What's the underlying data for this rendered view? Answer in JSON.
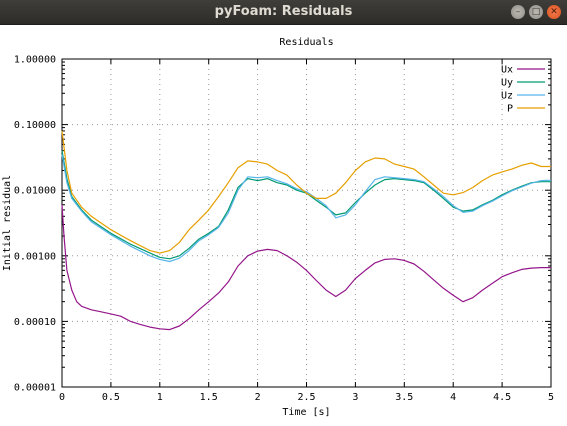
{
  "window": {
    "title": "pyFoam: Residuals",
    "controls": {
      "minimize": "–",
      "maximize": "□",
      "close": "✕"
    }
  },
  "chart_data": {
    "type": "line",
    "title": "Residuals",
    "xlabel": "Time [s]",
    "ylabel": "Initial residual",
    "xlim": [
      0,
      5
    ],
    "ylim": [
      1e-05,
      1
    ],
    "yscale": "log",
    "grid": true,
    "legend_position": "top-right",
    "xticks": [
      0,
      0.5,
      1,
      1.5,
      2,
      2.5,
      3,
      3.5,
      4,
      4.5,
      5
    ],
    "xtick_labels": [
      "0",
      "0.5",
      "1",
      "1.5",
      "2",
      "2.5",
      "3",
      "3.5",
      "4",
      "4.5",
      "5"
    ],
    "yticks": [
      1e-05,
      0.0001,
      0.001,
      0.01,
      0.1,
      1
    ],
    "ytick_labels": [
      "0.00001",
      "0.00010",
      "0.00100",
      "0.01000",
      "0.10000",
      "1.00000"
    ],
    "series": [
      {
        "name": "Ux",
        "color": "#94168a",
        "x": [
          0,
          0.02,
          0.05,
          0.1,
          0.15,
          0.2,
          0.3,
          0.4,
          0.5,
          0.6,
          0.7,
          0.8,
          0.9,
          1.0,
          1.1,
          1.2,
          1.3,
          1.4,
          1.5,
          1.6,
          1.7,
          1.8,
          1.9,
          2.0,
          2.1,
          2.2,
          2.3,
          2.4,
          2.5,
          2.6,
          2.7,
          2.8,
          2.9,
          3.0,
          3.1,
          3.2,
          3.3,
          3.4,
          3.5,
          3.6,
          3.7,
          3.8,
          3.9,
          4.0,
          4.1,
          4.2,
          4.3,
          4.4,
          4.5,
          4.6,
          4.7,
          4.8,
          4.9,
          5.0
        ],
        "y": [
          0.006,
          0.002,
          0.0006,
          0.0003,
          0.0002,
          0.00017,
          0.00015,
          0.00014,
          0.00013,
          0.00012,
          0.0001,
          9e-05,
          8.2e-05,
          7.7e-05,
          7.5e-05,
          8.5e-05,
          0.00011,
          0.00015,
          0.0002,
          0.00027,
          0.0004,
          0.0007,
          0.001,
          0.00118,
          0.00125,
          0.0012,
          0.001,
          0.0008,
          0.0006,
          0.00042,
          0.0003,
          0.00024,
          0.0003,
          0.00045,
          0.0006,
          0.00078,
          0.00088,
          0.0009,
          0.00085,
          0.00075,
          0.00058,
          0.00043,
          0.00032,
          0.00025,
          0.0002,
          0.00023,
          0.0003,
          0.00038,
          0.00048,
          0.00055,
          0.00062,
          0.00065,
          0.00066,
          0.00066
        ]
      },
      {
        "name": "Uy",
        "color": "#009a73",
        "x": [
          0,
          0.05,
          0.1,
          0.2,
          0.3,
          0.5,
          0.7,
          0.9,
          1.0,
          1.1,
          1.2,
          1.3,
          1.4,
          1.5,
          1.6,
          1.7,
          1.8,
          1.9,
          2.0,
          2.1,
          2.2,
          2.3,
          2.4,
          2.5,
          2.6,
          2.7,
          2.8,
          2.9,
          3.0,
          3.1,
          3.2,
          3.3,
          3.4,
          3.5,
          3.6,
          3.7,
          3.8,
          3.9,
          4.0,
          4.1,
          4.2,
          4.3,
          4.4,
          4.5,
          4.6,
          4.7,
          4.8,
          4.9,
          5.0
        ],
        "y": [
          0.04,
          0.015,
          0.008,
          0.005,
          0.0035,
          0.0022,
          0.0015,
          0.0011,
          0.00095,
          0.0009,
          0.001,
          0.0013,
          0.0018,
          0.0022,
          0.0028,
          0.005,
          0.011,
          0.015,
          0.014,
          0.015,
          0.013,
          0.012,
          0.01,
          0.009,
          0.007,
          0.0055,
          0.0042,
          0.0045,
          0.0065,
          0.009,
          0.012,
          0.0145,
          0.015,
          0.0145,
          0.014,
          0.013,
          0.01,
          0.0075,
          0.0055,
          0.0048,
          0.005,
          0.006,
          0.007,
          0.0085,
          0.01,
          0.0115,
          0.013,
          0.0135,
          0.0135
        ]
      },
      {
        "name": "Uz",
        "color": "#56b4e9",
        "x": [
          0,
          0.05,
          0.1,
          0.2,
          0.3,
          0.5,
          0.7,
          0.9,
          1.0,
          1.1,
          1.2,
          1.3,
          1.4,
          1.5,
          1.6,
          1.7,
          1.8,
          1.9,
          2.0,
          2.1,
          2.2,
          2.3,
          2.4,
          2.5,
          2.6,
          2.7,
          2.8,
          2.9,
          3.0,
          3.1,
          3.2,
          3.3,
          3.4,
          3.5,
          3.6,
          3.7,
          3.8,
          3.9,
          4.0,
          4.1,
          4.2,
          4.3,
          4.4,
          4.5,
          4.6,
          4.7,
          4.8,
          4.9,
          5.0
        ],
        "y": [
          0.035,
          0.013,
          0.0075,
          0.0048,
          0.0033,
          0.0021,
          0.0014,
          0.001,
          0.00088,
          0.00082,
          0.00092,
          0.0012,
          0.0017,
          0.0021,
          0.0027,
          0.0045,
          0.01,
          0.016,
          0.0155,
          0.016,
          0.014,
          0.0125,
          0.0105,
          0.0095,
          0.0075,
          0.0058,
          0.0038,
          0.0042,
          0.006,
          0.0095,
          0.0145,
          0.016,
          0.0155,
          0.015,
          0.0145,
          0.0135,
          0.0105,
          0.008,
          0.0058,
          0.0046,
          0.0048,
          0.0058,
          0.0068,
          0.0082,
          0.0098,
          0.0112,
          0.0128,
          0.014,
          0.0142
        ]
      },
      {
        "name": "P",
        "color": "#e69f00",
        "x": [
          0,
          0.05,
          0.1,
          0.2,
          0.3,
          0.5,
          0.7,
          0.9,
          1.0,
          1.1,
          1.2,
          1.3,
          1.4,
          1.5,
          1.6,
          1.7,
          1.8,
          1.9,
          2.0,
          2.1,
          2.2,
          2.3,
          2.4,
          2.5,
          2.6,
          2.7,
          2.8,
          2.9,
          3.0,
          3.1,
          3.2,
          3.3,
          3.4,
          3.5,
          3.6,
          3.7,
          3.8,
          3.9,
          4.0,
          4.1,
          4.2,
          4.3,
          4.4,
          4.5,
          4.6,
          4.7,
          4.8,
          4.9,
          5.0
        ],
        "y": [
          0.08,
          0.02,
          0.009,
          0.0055,
          0.004,
          0.0025,
          0.0017,
          0.0012,
          0.0011,
          0.0012,
          0.0016,
          0.0025,
          0.0035,
          0.005,
          0.008,
          0.013,
          0.022,
          0.028,
          0.027,
          0.025,
          0.02,
          0.017,
          0.012,
          0.009,
          0.0075,
          0.0075,
          0.009,
          0.013,
          0.02,
          0.027,
          0.031,
          0.03,
          0.025,
          0.023,
          0.021,
          0.016,
          0.012,
          0.009,
          0.0085,
          0.0092,
          0.011,
          0.014,
          0.017,
          0.019,
          0.021,
          0.024,
          0.026,
          0.023,
          0.023
        ]
      }
    ]
  }
}
